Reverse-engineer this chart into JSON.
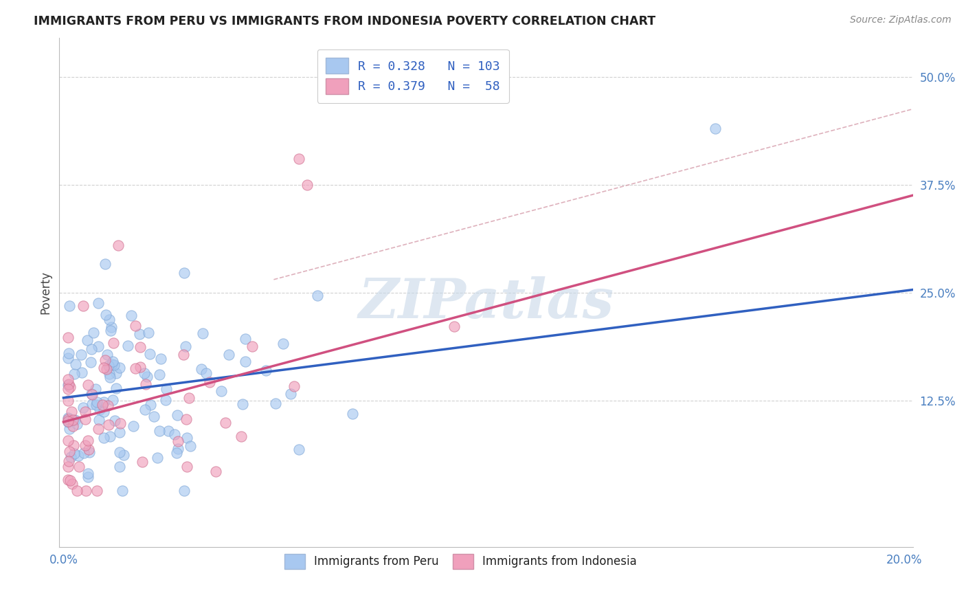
{
  "title": "IMMIGRANTS FROM PERU VS IMMIGRANTS FROM INDONESIA POVERTY CORRELATION CHART",
  "source": "Source: ZipAtlas.com",
  "ylabel": "Poverty",
  "ytick_vals": [
    0.125,
    0.25,
    0.375,
    0.5
  ],
  "ytick_labels": [
    "12.5%",
    "25.0%",
    "37.5%",
    "50.0%"
  ],
  "xlim": [
    -0.001,
    0.202
  ],
  "ylim": [
    -0.045,
    0.545
  ],
  "legend_text1": "R = 0.328   N = 103",
  "legend_text2": "R = 0.379   N =  58",
  "legend_label1": "Immigrants from Peru",
  "legend_label2": "Immigrants from Indonesia",
  "color_peru": "#A8C8F0",
  "color_indonesia": "#F0A0BC",
  "color_peru_line": "#3060C0",
  "color_indonesia_line": "#D05080",
  "color_grid": "#CCCCCC",
  "watermark": "ZIPatlas",
  "peru_intercept": 0.128,
  "peru_slope": 0.62,
  "indonesia_intercept": 0.1,
  "indonesia_slope": 1.3
}
